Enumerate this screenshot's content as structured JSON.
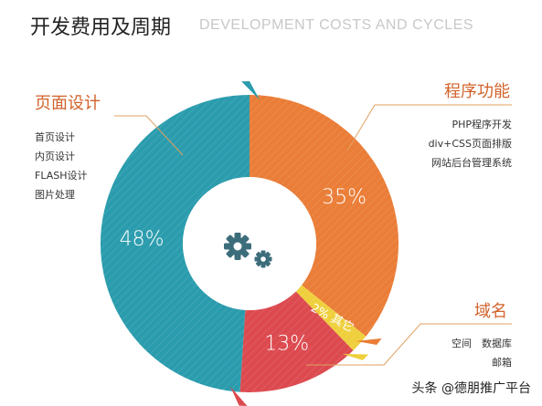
{
  "header": {
    "title": "开发费用及周期",
    "subtitle": "DEVELOPMENT COSTS AND CYCLES"
  },
  "callouts": {
    "design": {
      "title": "页面设计",
      "items": [
        "首页设计",
        "内页设计",
        "FLASH设计",
        "图片处理"
      ]
    },
    "program": {
      "title": "程序功能",
      "items": [
        "PHP程序开发",
        "div+CSS页面排版",
        "网站后台管理系统"
      ]
    },
    "domain": {
      "title": "域名",
      "items": [
        "空间　数据库",
        "邮箱"
      ]
    }
  },
  "watermark": "头条 @德朋推广平台",
  "colors": {
    "program": "#ea7d37",
    "other": "#efcf3c",
    "domain": "#dc4a4f",
    "design": "#2a9cad",
    "callout_title": "#d2622a",
    "center_icon": "#3c6d7b"
  },
  "icons": {
    "center": "gears-icon"
  },
  "chart_data": {
    "type": "pie",
    "title": "开发费用及周期",
    "subtitle": "DEVELOPMENT COSTS AND CYCLES",
    "donut": true,
    "slices": [
      {
        "label": "程序功能",
        "value": 35,
        "value_label": "35%"
      },
      {
        "label": "其它",
        "value": 2,
        "value_label": "2% 其它"
      },
      {
        "label": "域名",
        "value": 13,
        "value_label": "13%"
      },
      {
        "label": "页面设计",
        "value": 48,
        "value_label": "48%"
      }
    ]
  }
}
